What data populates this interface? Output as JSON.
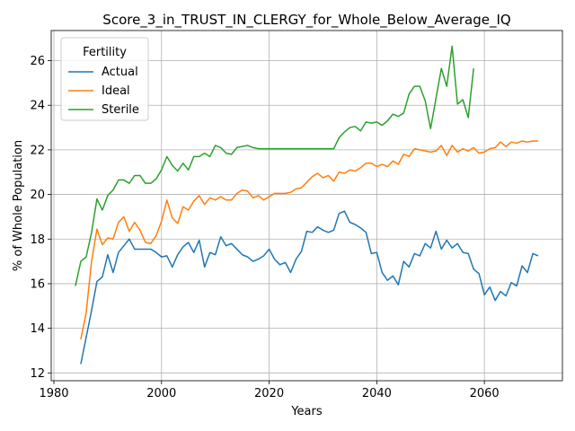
{
  "chart_data": {
    "type": "line",
    "title": "Score_3_in_TRUST_IN_CLERGY_for_Whole_Below_Average_IQ",
    "xlabel": "Years",
    "ylabel": "% of Whole Population",
    "xlim": [
      1979.5,
      2074.5
    ],
    "ylim": [
      11.65,
      27.35
    ],
    "xticks": [
      1980,
      2000,
      2020,
      2040,
      2060
    ],
    "yticks": [
      12,
      14,
      16,
      18,
      20,
      22,
      24,
      26
    ],
    "grid": true,
    "legend": {
      "title": "Fertility",
      "placement": "top-left"
    },
    "series": [
      {
        "name": "Actual",
        "color": "#1f77b4",
        "x": [
          1985,
          1986,
          1987,
          1988,
          1989,
          1990,
          1991,
          1992,
          1993,
          1994,
          1995,
          1996,
          1997,
          1998,
          1999,
          2000,
          2001,
          2002,
          2003,
          2004,
          2005,
          2006,
          2007,
          2008,
          2009,
          2010,
          2011,
          2012,
          2013,
          2014,
          2015,
          2016,
          2017,
          2018,
          2019,
          2020,
          2021,
          2022,
          2023,
          2024,
          2025,
          2026,
          2027,
          2028,
          2029,
          2030,
          2031,
          2032,
          2033,
          2034,
          2035,
          2036,
          2037,
          2038,
          2039,
          2040,
          2041,
          2042,
          2043,
          2044,
          2045,
          2046,
          2047,
          2048,
          2049,
          2050,
          2051,
          2052,
          2053,
          2054,
          2055,
          2056,
          2057,
          2058,
          2059,
          2060,
          2061,
          2062,
          2063,
          2064,
          2065,
          2066,
          2067,
          2068,
          2069,
          2070
        ],
        "y": [
          12.4,
          13.6,
          14.8,
          16.1,
          16.3,
          17.3,
          16.5,
          17.4,
          17.7,
          18.0,
          17.55,
          17.55,
          17.55,
          17.55,
          17.4,
          17.2,
          17.25,
          16.75,
          17.3,
          17.65,
          17.85,
          17.4,
          17.95,
          16.75,
          17.4,
          17.3,
          18.1,
          17.7,
          17.8,
          17.55,
          17.3,
          17.2,
          17.0,
          17.1,
          17.25,
          17.55,
          17.1,
          16.85,
          16.95,
          16.5,
          17.1,
          17.45,
          18.35,
          18.3,
          18.55,
          18.4,
          18.3,
          18.4,
          19.15,
          19.25,
          18.75,
          18.65,
          18.5,
          18.3,
          17.35,
          17.4,
          16.5,
          16.15,
          16.35,
          15.95,
          17.0,
          16.75,
          17.35,
          17.25,
          17.8,
          17.6,
          18.35,
          17.55,
          17.95,
          17.6,
          17.8,
          17.4,
          17.35,
          16.65,
          16.45,
          15.5,
          15.85,
          15.25,
          15.65,
          15.45,
          16.05,
          15.9,
          16.8,
          16.5,
          17.35,
          17.25
        ]
      },
      {
        "name": "Ideal",
        "color": "#ff7f0e",
        "x": [
          1985,
          1986,
          1987,
          1988,
          1989,
          1990,
          1991,
          1992,
          1993,
          1994,
          1995,
          1996,
          1997,
          1998,
          1999,
          2000,
          2001,
          2002,
          2003,
          2004,
          2005,
          2006,
          2007,
          2008,
          2009,
          2010,
          2011,
          2012,
          2013,
          2014,
          2015,
          2016,
          2017,
          2018,
          2019,
          2020,
          2021,
          2022,
          2023,
          2024,
          2025,
          2026,
          2027,
          2028,
          2029,
          2030,
          2031,
          2032,
          2033,
          2034,
          2035,
          2036,
          2037,
          2038,
          2039,
          2040,
          2041,
          2042,
          2043,
          2044,
          2045,
          2046,
          2047,
          2048,
          2049,
          2050,
          2051,
          2052,
          2053,
          2054,
          2055,
          2056,
          2057,
          2058,
          2059,
          2060,
          2061,
          2062,
          2063,
          2064,
          2065,
          2066,
          2067,
          2068,
          2069,
          2070
        ],
        "y": [
          13.5,
          14.7,
          17.0,
          18.45,
          17.75,
          18.05,
          18.0,
          18.75,
          19.0,
          18.35,
          18.75,
          18.4,
          17.85,
          17.8,
          18.15,
          18.8,
          19.75,
          18.95,
          18.7,
          19.45,
          19.3,
          19.7,
          19.95,
          19.55,
          19.85,
          19.75,
          19.9,
          19.75,
          19.75,
          20.05,
          20.2,
          20.15,
          19.85,
          19.95,
          19.75,
          19.9,
          20.05,
          20.05,
          20.05,
          20.1,
          20.25,
          20.3,
          20.55,
          20.8,
          20.95,
          20.75,
          20.85,
          20.6,
          21.0,
          20.95,
          21.1,
          21.05,
          21.2,
          21.4,
          21.4,
          21.25,
          21.35,
          21.25,
          21.5,
          21.35,
          21.8,
          21.7,
          22.05,
          22.0,
          21.95,
          21.9,
          21.95,
          22.2,
          21.75,
          22.2,
          21.9,
          22.05,
          21.95,
          22.1,
          21.85,
          21.9,
          22.05,
          22.1,
          22.35,
          22.15,
          22.35,
          22.3,
          22.4,
          22.35,
          22.4,
          22.4
        ]
      },
      {
        "name": "Sterile",
        "color": "#2ca02c",
        "x": [
          1984,
          1985,
          1986,
          1987,
          1988,
          1989,
          1990,
          1991,
          1992,
          1993,
          1994,
          1995,
          1996,
          1997,
          1998,
          1999,
          2000,
          2001,
          2002,
          2003,
          2004,
          2005,
          2006,
          2007,
          2008,
          2009,
          2010,
          2011,
          2012,
          2013,
          2014,
          2015,
          2016,
          2017,
          2018,
          2019,
          2020,
          2021,
          2022,
          2023,
          2024,
          2025,
          2026,
          2027,
          2028,
          2029,
          2030,
          2031,
          2032,
          2033,
          2034,
          2035,
          2036,
          2037,
          2038,
          2039,
          2040,
          2041,
          2042,
          2043,
          2044,
          2045,
          2046,
          2047,
          2048,
          2049,
          2050,
          2051,
          2052,
          2053,
          2054,
          2055,
          2056,
          2057,
          2058
        ],
        "y": [
          15.9,
          17.0,
          17.2,
          18.3,
          19.8,
          19.3,
          19.95,
          20.2,
          20.65,
          20.65,
          20.5,
          20.85,
          20.85,
          20.5,
          20.5,
          20.7,
          21.1,
          21.7,
          21.3,
          21.05,
          21.4,
          21.1,
          21.7,
          21.7,
          21.85,
          21.7,
          22.2,
          22.1,
          21.85,
          21.8,
          22.1,
          22.15,
          22.2,
          22.1,
          22.05,
          22.05,
          22.05,
          22.05,
          22.05,
          22.05,
          22.05,
          22.05,
          22.05,
          22.05,
          22.05,
          22.05,
          22.05,
          22.05,
          22.05,
          22.55,
          22.8,
          23.0,
          23.05,
          22.85,
          23.25,
          23.2,
          23.25,
          23.1,
          23.3,
          23.6,
          23.5,
          23.65,
          24.5,
          24.85,
          24.85,
          24.2,
          22.95,
          24.3,
          25.65,
          24.85,
          26.65,
          24.05,
          24.25,
          23.45,
          25.65
        ]
      }
    ]
  }
}
